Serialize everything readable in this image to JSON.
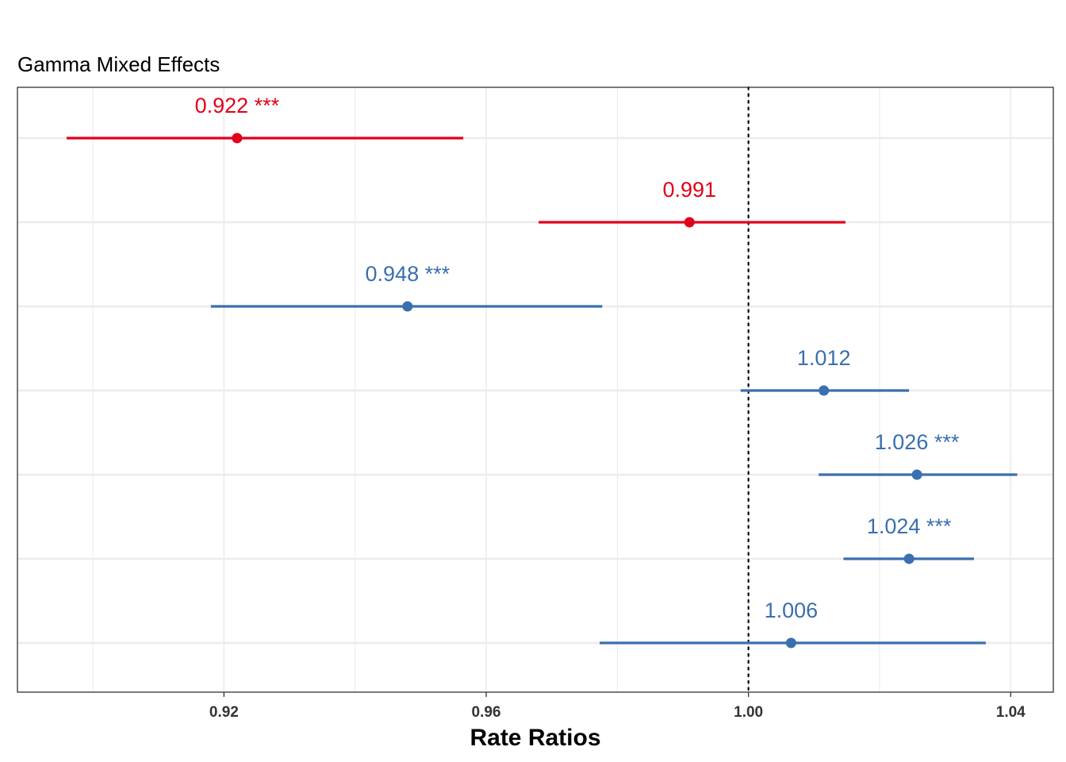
{
  "chart_data": {
    "type": "forest",
    "title": "Gamma Mixed Effects",
    "xlabel": "Rate Ratios",
    "xlim": [
      0.8885,
      1.0465
    ],
    "x_ticks": [
      0.92,
      0.96,
      1.0,
      1.04
    ],
    "x_tick_labels": [
      "0.92",
      "0.96",
      "1.00",
      "1.04"
    ],
    "x_minor_gridlines": [
      0.9,
      0.94,
      0.98,
      1.02
    ],
    "reference_line": 1.0,
    "grid": true,
    "colors": {
      "negative": "#e2001a",
      "positive": "#3a6fb0",
      "grid": "#ebebeb",
      "panel_border": "#333333"
    },
    "points": [
      {
        "estimate": 0.922,
        "ci_low": 0.896,
        "ci_high": 0.9565,
        "label": "0.922 ***",
        "color": "negative"
      },
      {
        "estimate": 0.991,
        "ci_low": 0.968,
        "ci_high": 1.0148,
        "label": "0.991",
        "color": "negative"
      },
      {
        "estimate": 0.948,
        "ci_low": 0.918,
        "ci_high": 0.9777,
        "label": "0.948 ***",
        "color": "positive"
      },
      {
        "estimate": 1.0115,
        "ci_low": 0.9988,
        "ci_high": 1.0245,
        "label": "1.012",
        "color": "positive"
      },
      {
        "estimate": 1.0257,
        "ci_low": 1.0107,
        "ci_high": 1.041,
        "label": "1.026 ***",
        "color": "positive"
      },
      {
        "estimate": 1.0245,
        "ci_low": 1.0145,
        "ci_high": 1.0344,
        "label": "1.024 ***",
        "color": "positive"
      },
      {
        "estimate": 1.0065,
        "ci_low": 0.9773,
        "ci_high": 1.0362,
        "label": "1.006",
        "color": "positive"
      }
    ]
  }
}
